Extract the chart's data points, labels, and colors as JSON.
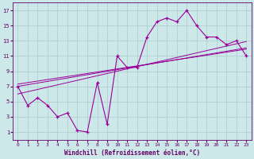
{
  "xlabel": "Windchill (Refroidissement éolien,°C)",
  "x_values": [
    0,
    1,
    2,
    3,
    4,
    5,
    6,
    7,
    8,
    9,
    10,
    11,
    12,
    13,
    14,
    15,
    16,
    17,
    18,
    19,
    20,
    21,
    22,
    23
  ],
  "y_main": [
    7.0,
    4.5,
    5.5,
    4.5,
    3.0,
    3.5,
    1.2,
    1.0,
    7.5,
    2.0,
    11.0,
    9.5,
    9.5,
    13.5,
    15.5,
    16.0,
    15.5,
    17.0,
    15.0,
    13.5,
    13.5,
    12.5,
    13.0,
    11.0
  ],
  "y_reg1": [
    7.0,
    7.22,
    7.44,
    7.66,
    7.88,
    8.1,
    8.32,
    8.54,
    8.76,
    8.98,
    9.2,
    9.42,
    9.64,
    9.86,
    10.08,
    10.3,
    10.52,
    10.74,
    10.96,
    11.18,
    11.4,
    11.62,
    11.84,
    12.06
  ],
  "y_reg2": [
    7.3,
    7.5,
    7.7,
    7.9,
    8.1,
    8.3,
    8.5,
    8.7,
    8.9,
    9.1,
    9.3,
    9.5,
    9.7,
    9.9,
    10.1,
    10.3,
    10.5,
    10.7,
    10.9,
    11.1,
    11.3,
    11.5,
    11.7,
    11.9
  ],
  "y_reg3": [
    6.0,
    6.3,
    6.6,
    6.9,
    7.2,
    7.5,
    7.8,
    8.1,
    8.4,
    8.7,
    9.0,
    9.3,
    9.6,
    9.9,
    10.2,
    10.5,
    10.8,
    11.1,
    11.4,
    11.7,
    12.0,
    12.3,
    12.6,
    12.9
  ],
  "line_color": "#990099",
  "bg_color": "#cce8e8",
  "grid_color": "#aacccc",
  "ylim": [
    0,
    18
  ],
  "yticks": [
    1,
    3,
    5,
    7,
    9,
    11,
    13,
    15,
    17
  ],
  "xticks": [
    0,
    1,
    2,
    3,
    4,
    5,
    6,
    7,
    8,
    9,
    10,
    11,
    12,
    13,
    14,
    15,
    16,
    17,
    18,
    19,
    20,
    21,
    22,
    23
  ],
  "figsize": [
    3.2,
    2.0
  ],
  "dpi": 100
}
